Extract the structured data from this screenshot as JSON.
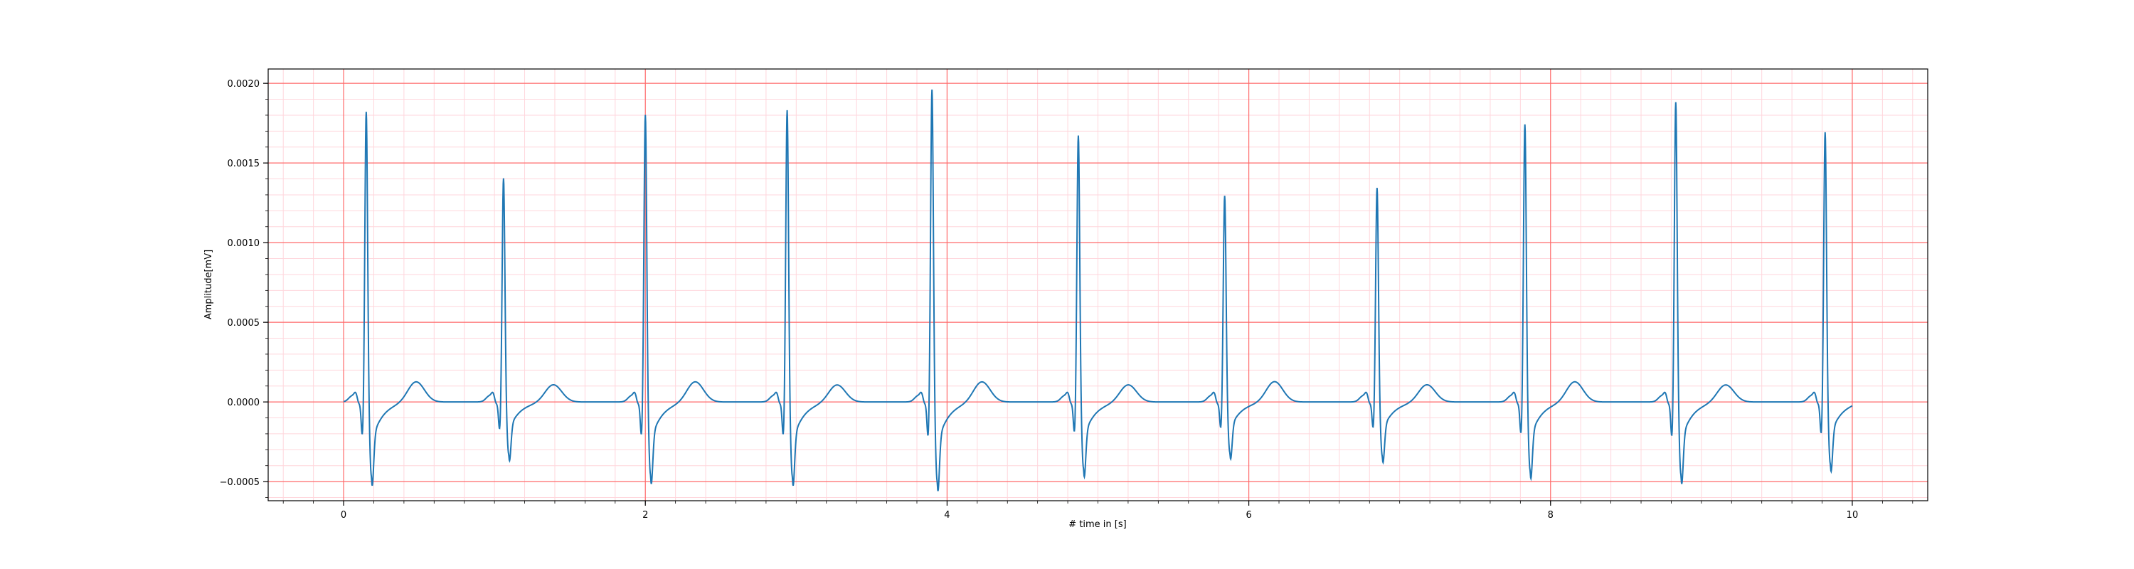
{
  "chart_data": {
    "type": "line",
    "title": "",
    "xlabel": "# time in [s]",
    "ylabel": "Amplitude[mV]",
    "xlim": [
      -0.5,
      10.5
    ],
    "ylim": [
      -0.00062,
      0.00209
    ],
    "xticks": [
      0,
      2,
      4,
      6,
      8,
      10
    ],
    "xtick_labels": [
      "0",
      "2",
      "4",
      "6",
      "8",
      "10"
    ],
    "yticks": [
      -0.0005,
      0.0,
      0.0005,
      0.001,
      0.0015,
      0.002
    ],
    "ytick_labels": [
      "−0.0005",
      "0.0000",
      "0.0005",
      "0.0010",
      "0.0015",
      "0.0020"
    ],
    "grid": {
      "major": true,
      "minor": true,
      "major_color": "#ff6b6b",
      "minor_color": "#ffd6dc",
      "minor_x_step": 0.2,
      "minor_y_step": 0.0001
    },
    "line_color": "#1f77b4",
    "beats": [
      {
        "t": 0.15,
        "r": 0.00183,
        "q": -0.00023,
        "s": -0.00047
      },
      {
        "t": 1.06,
        "r": 0.00141,
        "q": -0.00019,
        "s": -0.00033
      },
      {
        "t": 2.0,
        "r": 0.00181,
        "q": -0.00023,
        "s": -0.00046
      },
      {
        "t": 2.94,
        "r": 0.00184,
        "q": -0.00023,
        "s": -0.00047
      },
      {
        "t": 3.9,
        "r": 0.00197,
        "q": -0.00024,
        "s": -0.0005
      },
      {
        "t": 4.87,
        "r": 0.00168,
        "q": -0.00021,
        "s": -0.00042
      },
      {
        "t": 5.84,
        "r": 0.0013,
        "q": -0.00018,
        "s": -0.00032
      },
      {
        "t": 6.85,
        "r": 0.00135,
        "q": -0.00018,
        "s": -0.00034
      },
      {
        "t": 7.83,
        "r": 0.00175,
        "q": -0.00022,
        "s": -0.00043
      },
      {
        "t": 8.83,
        "r": 0.00189,
        "q": -0.00024,
        "s": -0.00046
      },
      {
        "t": 9.82,
        "r": 0.0017,
        "q": -0.00022,
        "s": -0.00039
      }
    ],
    "t_wave_amplitude": 0.00013,
    "t_wave_offset": 0.33,
    "p_wave_amplitude": 4e-05,
    "p_wave_offset": -0.09,
    "x_range": [
      0,
      10
    ]
  }
}
